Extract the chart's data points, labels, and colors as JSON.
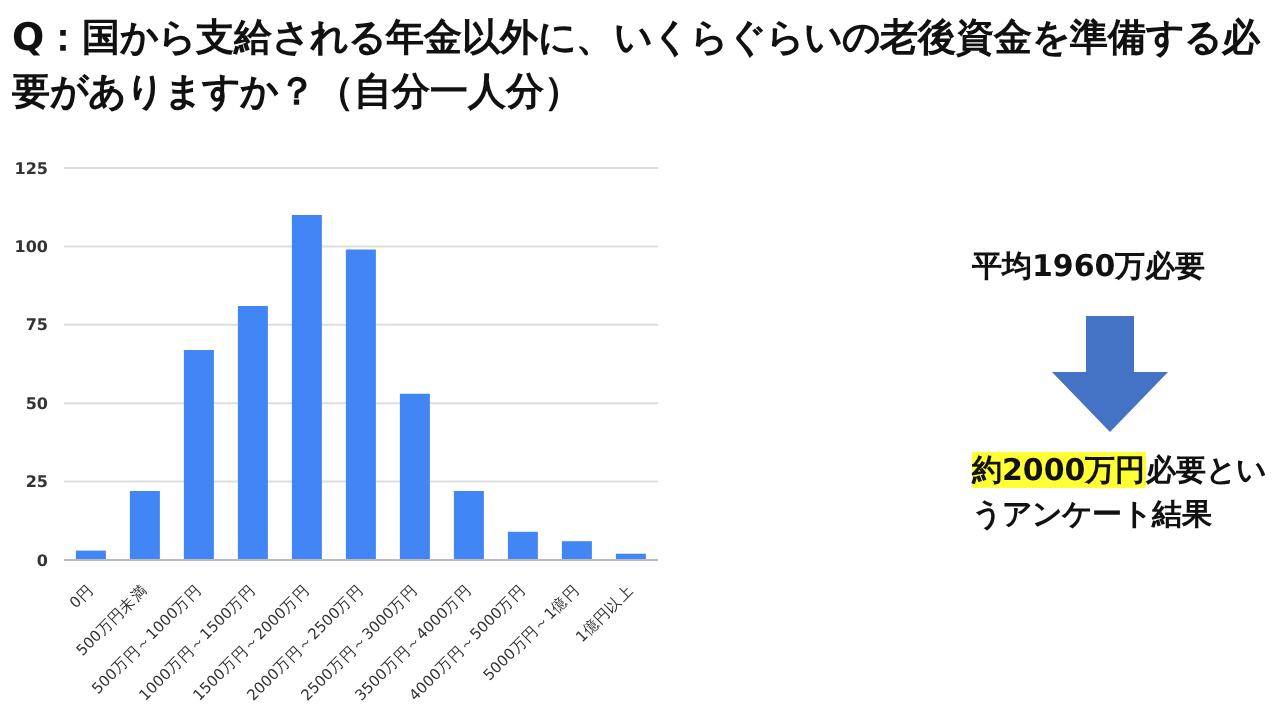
{
  "chart_data": {
    "type": "bar",
    "title": "Q：国から支給される年金以外に、いくらぐらいの老後資金を準備する必要がありますか？（自分一人分）",
    "categories": [
      "0円",
      "500万円未満",
      "500万円～1000万円",
      "1000万円～1500万円",
      "1500万円～2000万円",
      "2000万円～2500万円",
      "2500万円～3000万円",
      "3500万円～4000万円",
      "4000万円～5000万円",
      "5000万円～1億円",
      "1億円以上"
    ],
    "values": [
      3,
      22,
      67,
      81,
      110,
      99,
      53,
      22,
      9,
      6,
      2
    ],
    "color": "#4285f4",
    "ylim": [
      0,
      125
    ],
    "yticks": [
      0,
      25,
      50,
      75,
      100,
      125
    ],
    "grid": "y",
    "annotations": [
      "平均1960万必要",
      "約2000万円",
      "必要というアンケート結果"
    ]
  }
}
